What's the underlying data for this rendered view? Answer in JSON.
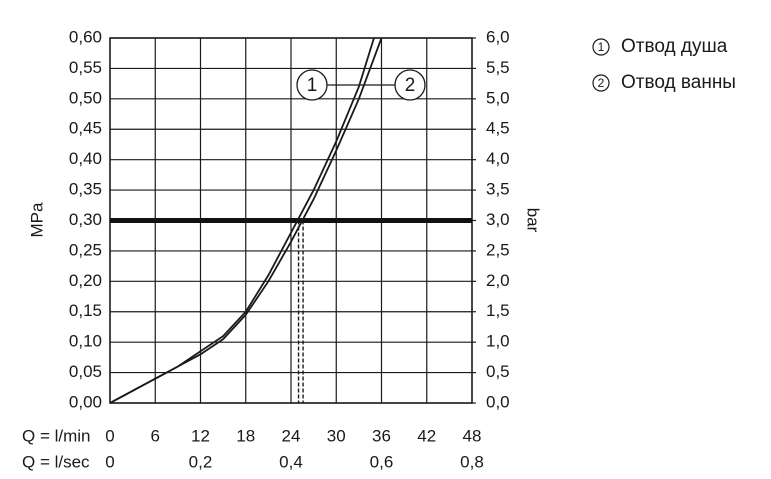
{
  "chart_data": {
    "type": "line",
    "y_label": "MPa",
    "y2_label": "bar",
    "x_label": "Q = l/min",
    "x2_label": "Q = l/sec",
    "series": [
      {
        "name": "Отвод душа",
        "label": "1",
        "color": "#1a1a1a",
        "x": [
          0,
          3,
          6,
          9,
          12,
          15,
          18,
          21,
          24,
          27,
          30,
          33,
          35
        ],
        "values": [
          0,
          0.02,
          0.04,
          0.06,
          0.085,
          0.11,
          0.15,
          0.21,
          0.28,
          0.35,
          0.43,
          0.52,
          0.6
        ]
      },
      {
        "name": "Отвод ванны",
        "label": "2",
        "color": "#1a1a1a",
        "x": [
          0,
          3,
          6,
          9,
          12,
          15,
          18,
          21,
          24,
          27,
          30,
          33,
          36
        ],
        "values": [
          0,
          0.02,
          0.04,
          0.06,
          0.08,
          0.105,
          0.145,
          0.2,
          0.265,
          0.335,
          0.415,
          0.5,
          0.6
        ]
      }
    ],
    "reference_y": 0.3,
    "dashed_x": [
      25,
      25.6
    ],
    "xlim": [
      0,
      48
    ],
    "xticks": [
      0,
      6,
      12,
      18,
      24,
      30,
      36,
      42,
      48
    ],
    "x2lim": [
      0,
      0.8
    ],
    "x2ticks": [
      0,
      {
        "value": 0.2,
        "label": "0,2"
      },
      {
        "value": 0.4,
        "label": "0,4"
      },
      {
        "value": 0.6,
        "label": "0,6"
      },
      {
        "value": 0.8,
        "label": "0,8"
      }
    ],
    "ylim": [
      0,
      0.6
    ],
    "yticks": [
      {
        "value": 0,
        "label": "0,00"
      },
      {
        "value": 0.05,
        "label": "0,05"
      },
      {
        "value": 0.1,
        "label": "0,10"
      },
      {
        "value": 0.15,
        "label": "0,15"
      },
      {
        "value": 0.2,
        "label": "0,20"
      },
      {
        "value": 0.25,
        "label": "0,25"
      },
      {
        "value": 0.3,
        "label": "0,30"
      },
      {
        "value": 0.35,
        "label": "0,35"
      },
      {
        "value": 0.4,
        "label": "0,40"
      },
      {
        "value": 0.45,
        "label": "0,45"
      },
      {
        "value": 0.5,
        "label": "0,50"
      },
      {
        "value": 0.55,
        "label": "0,55"
      },
      {
        "value": 0.6,
        "label": "0,60"
      }
    ],
    "y2lim": [
      0,
      6
    ],
    "y2ticks": [
      {
        "value": 0,
        "label": "0,0"
      },
      {
        "value": 0.5,
        "label": "0,5"
      },
      {
        "value": 1,
        "label": "1,0"
      },
      {
        "value": 1.5,
        "label": "1,5"
      },
      {
        "value": 2,
        "label": "2,0"
      },
      {
        "value": 2.5,
        "label": "2,5"
      },
      {
        "value": 3,
        "label": "3,0"
      },
      {
        "value": 3.5,
        "label": "3,5"
      },
      {
        "value": 4,
        "label": "4,0"
      },
      {
        "value": 4.5,
        "label": "4,5"
      },
      {
        "value": 5,
        "label": "5,0"
      },
      {
        "value": 5.5,
        "label": "5,5"
      },
      {
        "value": 6,
        "label": "6,0"
      }
    ],
    "grid": true
  }
}
